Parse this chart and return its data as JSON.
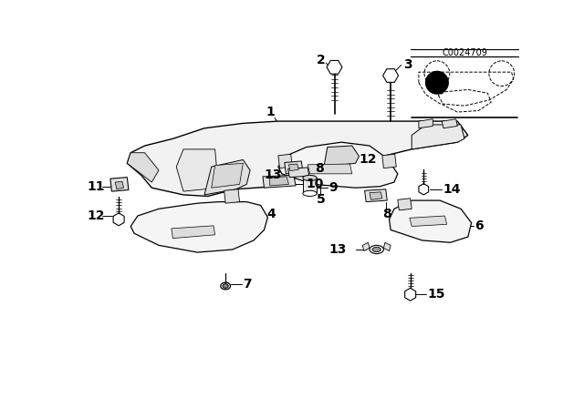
{
  "background_color": "#ffffff",
  "image_code": "C0024709",
  "line_color": "#000000"
}
